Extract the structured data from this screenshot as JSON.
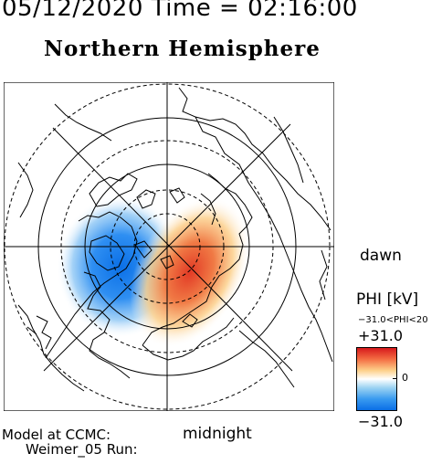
{
  "header": {
    "datetime": "05/12/2020 Time = 02:16:00",
    "hemisphere": "Northern Hemisphere"
  },
  "map": {
    "projection": "polar",
    "pole": "north",
    "orientation_labels": {
      "dawn": "dawn",
      "midnight": "midnight"
    },
    "potential_cells": [
      {
        "sign": "negative",
        "sector": "dusk-midnight",
        "color": "#1e88f0"
      },
      {
        "sign": "positive",
        "sector": "dawn-midnight",
        "color": "#e8402a"
      }
    ]
  },
  "colorbar": {
    "title": "PHI [kV]",
    "range_text": "−31.0<PHI<20",
    "max_label": "+31.0",
    "mid_label": "0",
    "min_label": "−31.0",
    "colors": [
      "#d7191c",
      "#f46d43",
      "#fdd08a",
      "#ffffff",
      "#9cd3f2",
      "#3a9bf0",
      "#0a6fe6"
    ]
  },
  "footer": {
    "model_line1": "Model at CCMC:",
    "model_line2": "Weimer_05 Run:"
  }
}
